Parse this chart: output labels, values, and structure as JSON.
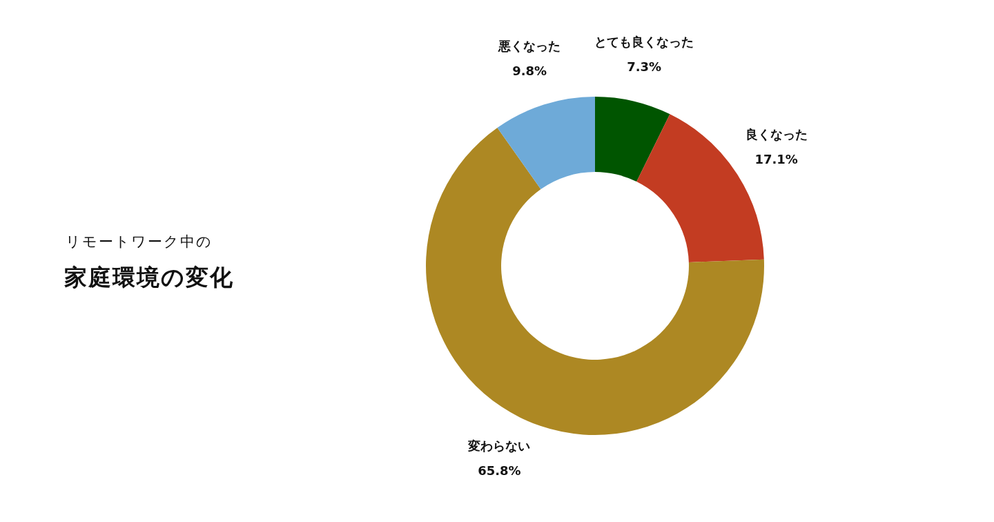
{
  "chart_data": {
    "type": "donut",
    "title": "家庭環境の変化",
    "subtitle": "リモートワーク中の",
    "categories": [
      "とても良くなった",
      "良くなった",
      "変わらない",
      "悪くなった"
    ],
    "values": [
      7.3,
      17.1,
      65.8,
      9.8
    ],
    "value_labels": [
      "7.3%",
      "17.1%",
      "65.8%",
      "9.8%"
    ],
    "colors": [
      "#005500",
      "#c33c22",
      "#ad8823",
      "#6eaad8"
    ],
    "legend": false
  }
}
